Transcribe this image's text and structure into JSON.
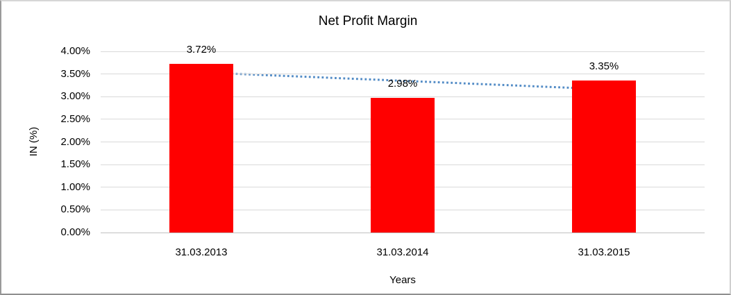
{
  "chart_data": {
    "type": "bar",
    "title": "Net Profit Margin",
    "xlabel": "Years",
    "ylabel": "IN (%)",
    "categories": [
      "31.03.2013",
      "31.03.2014",
      "31.03.2015"
    ],
    "values": [
      3.72,
      2.98,
      3.35
    ],
    "data_labels": [
      "3.72%",
      "2.98%",
      "3.35%"
    ],
    "ylim": [
      0,
      4
    ],
    "ytick_step": 0.5,
    "yticks": [
      "0.00%",
      "0.50%",
      "1.00%",
      "1.50%",
      "2.00%",
      "2.50%",
      "3.00%",
      "3.50%",
      "4.00%"
    ],
    "grid": true,
    "legend": "none",
    "bar_color": "#ff0000",
    "gridline_color": "#d9d9d9",
    "trendline": {
      "style": "dotted",
      "color": "#538cc6",
      "start_value": 3.535,
      "end_value": 3.165
    }
  }
}
